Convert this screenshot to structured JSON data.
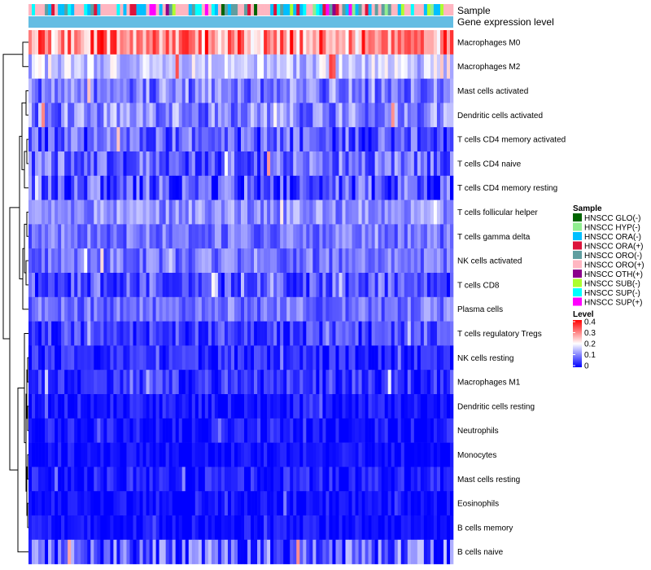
{
  "chart_data": {
    "type": "heatmap",
    "title": "",
    "annotation_labels": {
      "sample": "Sample",
      "level": "Gene expression level"
    },
    "rows": [
      {
        "name": "Macrophages M0",
        "mean": 0.29,
        "spread": 0.1
      },
      {
        "name": "Macrophages M2",
        "mean": 0.16,
        "spread": 0.06
      },
      {
        "name": "Mast cells activated",
        "mean": 0.1,
        "spread": 0.07
      },
      {
        "name": "Dendritic cells activated",
        "mean": 0.1,
        "spread": 0.07
      },
      {
        "name": "T cells CD4 memory activated",
        "mean": 0.07,
        "spread": 0.07
      },
      {
        "name": "T cells CD4 naive",
        "mean": 0.08,
        "spread": 0.07
      },
      {
        "name": "T cells CD4 memory resting",
        "mean": 0.06,
        "spread": 0.08
      },
      {
        "name": "T cells follicular helper",
        "mean": 0.11,
        "spread": 0.05
      },
      {
        "name": "T cells gamma delta",
        "mean": 0.09,
        "spread": 0.05
      },
      {
        "name": "NK cells activated",
        "mean": 0.09,
        "spread": 0.05
      },
      {
        "name": "T cells CD8",
        "mean": 0.06,
        "spread": 0.06
      },
      {
        "name": "Plasma cells",
        "mean": 0.09,
        "spread": 0.05
      },
      {
        "name": "T cells regulatory  Tregs",
        "mean": 0.05,
        "spread": 0.05
      },
      {
        "name": "NK cells resting",
        "mean": 0.03,
        "spread": 0.04
      },
      {
        "name": "Macrophages M1",
        "mean": 0.04,
        "spread": 0.05
      },
      {
        "name": "Dendritic cells resting",
        "mean": 0.02,
        "spread": 0.03
      },
      {
        "name": "Neutrophils",
        "mean": 0.01,
        "spread": 0.04
      },
      {
        "name": "Monocytes",
        "mean": 0.01,
        "spread": 0.03
      },
      {
        "name": "Mast cells resting",
        "mean": 0.02,
        "spread": 0.04
      },
      {
        "name": "Eosinophils",
        "mean": 0.01,
        "spread": 0.03
      },
      {
        "name": "B cells memory",
        "mean": 0.01,
        "spread": 0.03
      },
      {
        "name": "B cells naive",
        "mean": 0.07,
        "spread": 0.09
      }
    ],
    "n_columns": 130,
    "color_scale": {
      "title": "Level",
      "min": 0,
      "max": 0.4,
      "ticks": [
        "0.4",
        "0.3",
        "0.2",
        "0.1",
        "0"
      ],
      "low_color": "#0000ff",
      "mid_color": "#ffffff",
      "high_color": "#ff0000"
    },
    "sample_legend": {
      "title": "Sample",
      "groups": [
        {
          "label": "HNSCC GLO(-)",
          "color": "#006400"
        },
        {
          "label": "HNSCC HYP(-)",
          "color": "#90ee90"
        },
        {
          "label": "HNSCC ORA(-)",
          "color": "#00bfff"
        },
        {
          "label": "HNSCC ORA(+)",
          "color": "#dc143c"
        },
        {
          "label": "HNSCC ORO(-)",
          "color": "#5f9ea0"
        },
        {
          "label": "HNSCC ORO(+)",
          "color": "#ffb6c1"
        },
        {
          "label": "HNSCC OTH(+)",
          "color": "#8b008b"
        },
        {
          "label": "HNSCC SUB(-)",
          "color": "#adff2f"
        },
        {
          "label": "HNSCC SUP(-)",
          "color": "#00ffff"
        },
        {
          "label": "HNSCC SUP(+)",
          "color": "#ff00ff"
        }
      ]
    },
    "level_annotation_color": "#63bde3"
  }
}
